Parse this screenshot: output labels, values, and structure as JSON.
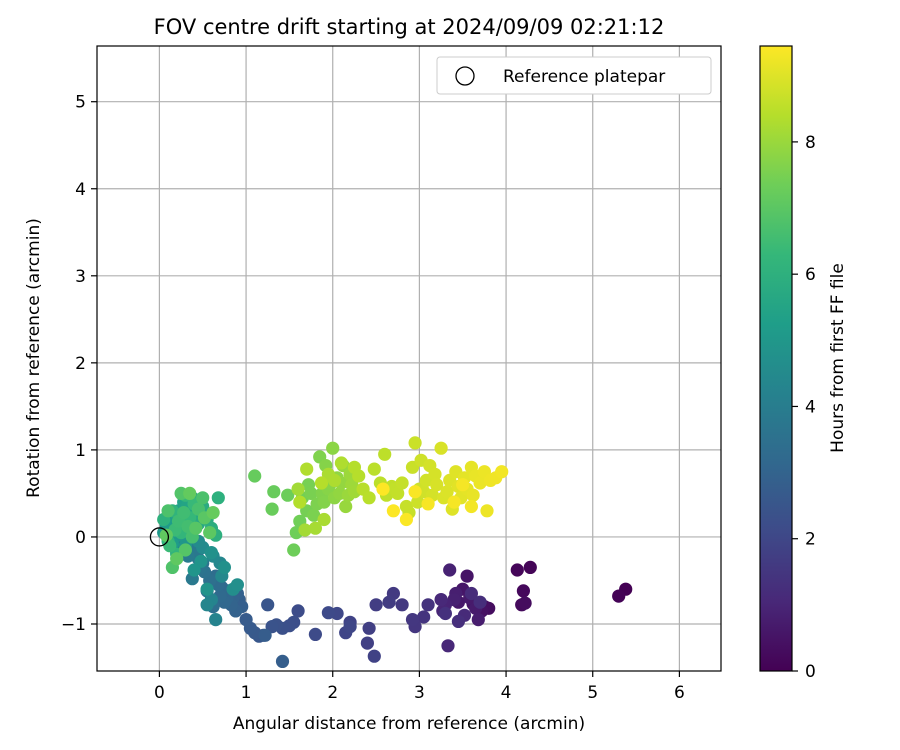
{
  "chart_data": {
    "type": "scatter",
    "title": "FOV centre drift starting at 2024/09/09 02:21:12",
    "xlabel": "Angular distance from reference (arcmin)",
    "ylabel": "Rotation from reference (arcmin)",
    "xlim": [
      -0.72,
      6.48
    ],
    "ylim": [
      -1.54,
      5.64
    ],
    "x_ticks": [
      "0",
      "1",
      "2",
      "3",
      "4",
      "5",
      "6"
    ],
    "y_ticks": [
      "−1",
      "0",
      "1",
      "2",
      "3",
      "4",
      "5"
    ],
    "grid": true,
    "legend": {
      "position": "top-right",
      "entries": [
        {
          "label": "Reference platepar",
          "marker": "open-circle"
        }
      ]
    },
    "reference_point": {
      "x": 0.0,
      "y": 0.0
    },
    "colorbar": {
      "label": "Hours from first FF file",
      "colormap": "viridis",
      "range": [
        0,
        9.45
      ],
      "ticks": [
        "0",
        "2",
        "4",
        "6",
        "8"
      ],
      "stops": [
        "#440154",
        "#482878",
        "#3e4a89",
        "#31688e",
        "#26828e",
        "#1f9e89",
        "#35b779",
        "#6ece58",
        "#b5de2b",
        "#fde725"
      ]
    },
    "series": [
      {
        "color_by": "hours",
        "x": [
          5.38,
          5.3,
          4.28,
          4.13,
          4.2,
          4.18,
          4.22,
          3.8,
          3.75,
          3.72,
          3.62,
          3.55,
          3.5,
          3.45,
          3.58,
          3.65,
          3.68,
          3.42,
          3.4,
          3.35,
          3.3,
          3.27,
          3.33,
          3.25,
          3.52,
          3.6,
          3.7,
          3.45,
          3.3,
          3.1,
          3.05,
          2.95,
          2.92,
          2.8,
          2.7,
          2.65,
          2.5,
          2.42,
          2.4,
          2.48,
          2.2,
          2.15,
          2.2,
          2.05,
          1.95,
          1.8,
          1.6,
          1.55,
          1.5,
          1.42,
          1.35,
          1.3,
          1.25,
          1.2,
          1.15,
          1.1,
          1.05,
          1.0,
          1.22,
          1.42
        ],
        "y": [
          -0.6,
          -0.68,
          -0.35,
          -0.38,
          -0.62,
          -0.78,
          -0.76,
          -0.82,
          -0.8,
          -0.85,
          -0.77,
          -0.45,
          -0.6,
          -0.75,
          -0.7,
          -0.82,
          -0.95,
          -0.65,
          -0.72,
          -0.38,
          -0.78,
          -0.85,
          -1.25,
          -0.72,
          -0.9,
          -0.65,
          -0.75,
          -0.97,
          -0.88,
          -0.78,
          -0.92,
          -1.03,
          -0.95,
          -0.78,
          -0.65,
          -0.75,
          -0.78,
          -1.05,
          -1.22,
          -1.37,
          -0.98,
          -1.1,
          -1.03,
          -0.88,
          -0.87,
          -1.12,
          -0.85,
          -0.98,
          -1.02,
          -1.05,
          -1.01,
          -1.03,
          -0.78,
          -1.13,
          -1.14,
          -1.1,
          -1.05,
          -0.95,
          -1.13,
          -1.43
        ],
        "h0": 0.0,
        "h1": 2.8
      },
      {
        "color_by": "hours",
        "x": [
          0.92,
          0.95,
          0.9,
          0.88,
          0.85,
          0.83,
          0.8,
          0.78,
          0.75,
          0.72,
          0.7,
          0.68,
          0.65,
          0.62,
          0.6,
          0.58,
          0.55,
          0.52,
          0.5,
          0.48,
          0.45,
          0.42,
          0.4,
          0.38,
          0.35,
          0.33,
          0.3,
          0.28,
          0.25,
          0.22,
          0.2,
          0.18,
          0.65,
          0.6,
          0.55,
          0.7,
          0.72,
          0.62,
          0.5,
          0.45,
          0.35,
          0.85,
          0.9,
          0.75,
          0.6,
          0.55,
          0.48,
          0.4,
          0.3,
          0.25
        ],
        "y": [
          -0.72,
          -0.8,
          -0.65,
          -0.85,
          -0.7,
          -0.78,
          -0.62,
          -0.7,
          -0.75,
          -0.58,
          -0.68,
          -0.55,
          -0.45,
          -0.8,
          -0.72,
          -0.5,
          -0.62,
          -0.4,
          -0.3,
          -0.35,
          -0.25,
          -0.2,
          -0.15,
          -0.48,
          -0.1,
          -0.22,
          -0.05,
          0.0,
          -0.12,
          0.05,
          -0.18,
          0.1,
          -0.95,
          -0.72,
          -0.78,
          -0.3,
          -0.45,
          -0.22,
          -0.12,
          -0.05,
          0.08,
          -0.6,
          -0.55,
          -0.35,
          -0.18,
          -0.6,
          -0.28,
          -0.38,
          -0.1,
          0.02
        ],
        "h0": 2.8,
        "h1": 5.0
      },
      {
        "color_by": "hours",
        "x": [
          0.05,
          0.08,
          0.1,
          0.12,
          0.15,
          0.18,
          0.2,
          0.22,
          0.25,
          0.28,
          0.3,
          0.32,
          0.35,
          0.38,
          0.4,
          0.42,
          0.45,
          0.48,
          0.5,
          0.55,
          0.6,
          0.65,
          0.68,
          0.05,
          0.1,
          0.15,
          0.2,
          0.25,
          0.3,
          0.35,
          0.4,
          0.12,
          0.18,
          0.22,
          0.28,
          0.33,
          0.38,
          0.45,
          0.5,
          0.1,
          0.15,
          0.25,
          0.3,
          0.42,
          0.52,
          0.58,
          0.2,
          0.08,
          0.35,
          0.62
        ],
        "y": [
          0.05,
          0.12,
          0.2,
          0.0,
          -0.08,
          0.15,
          0.25,
          0.3,
          0.1,
          0.4,
          0.2,
          0.35,
          0.05,
          0.45,
          0.25,
          0.3,
          0.15,
          0.42,
          0.35,
          0.2,
          0.1,
          0.02,
          0.45,
          0.2,
          -0.05,
          0.3,
          -0.2,
          0.05,
          0.48,
          0.22,
          0.38,
          -0.1,
          0.08,
          0.18,
          0.28,
          0.12,
          0.0,
          0.32,
          0.45,
          0.3,
          -0.35,
          0.5,
          -0.15,
          0.1,
          0.22,
          0.05,
          -0.25,
          0.02,
          0.5,
          0.28
        ],
        "h0": 5.0,
        "h1": 7.2
      },
      {
        "color_by": "hours",
        "x": [
          1.1,
          1.32,
          1.3,
          1.48,
          1.55,
          1.58,
          1.62,
          1.65,
          1.7,
          1.72,
          1.75,
          1.78,
          1.82,
          1.85,
          1.88,
          1.9,
          1.92,
          1.95,
          1.98,
          2.0,
          2.02,
          2.05,
          2.08,
          2.1,
          2.12,
          2.15,
          2.18,
          2.2,
          2.22,
          2.25,
          1.6,
          1.68,
          1.8,
          1.9,
          1.95,
          2.02,
          2.1,
          1.7,
          1.62,
          1.87
        ],
        "y": [
          0.7,
          0.52,
          0.32,
          0.48,
          -0.15,
          0.05,
          0.18,
          0.45,
          0.3,
          0.6,
          0.5,
          0.25,
          0.38,
          0.92,
          0.5,
          0.4,
          0.82,
          0.55,
          0.62,
          1.02,
          0.45,
          0.68,
          0.5,
          0.62,
          0.82,
          0.35,
          0.48,
          0.72,
          0.6,
          0.52,
          0.55,
          0.08,
          0.1,
          0.2,
          0.72,
          0.65,
          0.85,
          0.78,
          0.4,
          0.62
        ],
        "h0": 7.2,
        "h1": 8.4
      },
      {
        "color_by": "hours",
        "x": [
          2.25,
          2.3,
          2.35,
          2.42,
          2.48,
          2.55,
          2.6,
          2.62,
          2.68,
          2.72,
          2.75,
          2.8,
          2.85,
          2.88,
          2.92,
          2.95,
          2.98,
          3.0,
          3.02,
          3.05,
          3.08,
          3.12,
          3.15,
          3.18,
          3.2,
          3.25,
          3.28,
          3.32,
          3.35,
          3.38,
          3.42,
          3.45,
          3.48,
          3.52,
          3.55,
          3.6,
          3.62,
          3.65,
          3.7,
          3.75,
          3.78,
          3.82,
          3.88,
          3.95,
          3.6,
          3.5,
          3.4,
          3.1,
          2.95,
          2.85,
          2.7,
          2.58
        ],
        "y": [
          0.8,
          0.7,
          0.55,
          0.45,
          0.78,
          0.62,
          0.95,
          0.48,
          0.58,
          0.55,
          0.5,
          0.62,
          0.35,
          0.28,
          0.8,
          1.08,
          0.4,
          0.55,
          0.88,
          0.52,
          0.65,
          0.82,
          0.48,
          0.72,
          0.6,
          1.02,
          0.45,
          0.52,
          0.65,
          0.32,
          0.75,
          0.58,
          0.45,
          0.68,
          0.55,
          0.8,
          0.48,
          0.7,
          0.62,
          0.75,
          0.3,
          0.65,
          0.68,
          0.75,
          0.35,
          0.6,
          0.4,
          0.38,
          0.52,
          0.2,
          0.3,
          0.55
        ],
        "h0": 8.4,
        "h1": 9.45
      }
    ]
  }
}
